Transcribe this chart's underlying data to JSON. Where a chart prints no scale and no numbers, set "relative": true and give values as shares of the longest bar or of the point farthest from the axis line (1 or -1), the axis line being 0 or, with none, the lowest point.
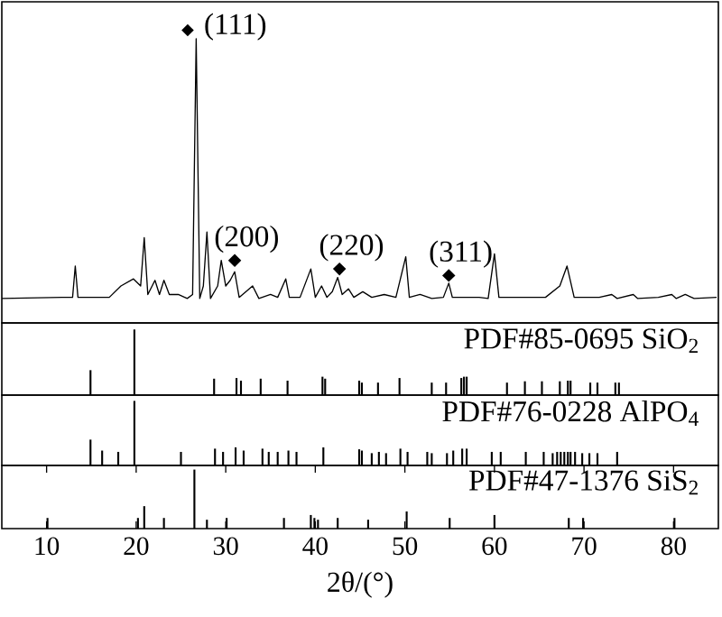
{
  "chart_data": [
    {
      "type": "line",
      "relative": true,
      "xlim": [
        5,
        85
      ],
      "tick_labels": false,
      "color": "#000000",
      "x": [
        5.0,
        11.7,
        12.9,
        13.2,
        13.5,
        17.0,
        18.3,
        19.7,
        20.5,
        20.9,
        21.3,
        22.1,
        22.6,
        23.1,
        23.7,
        24.7,
        25.7,
        26.3,
        26.7,
        27.1,
        27.5,
        27.9,
        28.3,
        29.1,
        29.5,
        30.0,
        30.5,
        31.0,
        31.5,
        33.0,
        33.7,
        35.0,
        35.8,
        36.7,
        37.1,
        38.3,
        39.5,
        40.0,
        40.7,
        41.3,
        41.9,
        42.5,
        43.0,
        43.7,
        44.3,
        45.3,
        46.3,
        47.7,
        49.0,
        50.1,
        50.5,
        51.7,
        53.0,
        54.3,
        54.9,
        55.3,
        58.3,
        59.3,
        60.0,
        60.5,
        61.7,
        63.0,
        65.7,
        67.3,
        68.1,
        68.9,
        71.7,
        73.1,
        73.7,
        75.5,
        76.0,
        78.3,
        79.8,
        80.3,
        81.3,
        82.3,
        84.8
      ],
      "values": [
        0.086,
        0.09,
        0.09,
        0.2,
        0.09,
        0.09,
        0.13,
        0.155,
        0.13,
        0.3,
        0.1,
        0.15,
        0.1,
        0.15,
        0.1,
        0.1,
        0.086,
        0.1,
        1.0,
        0.086,
        0.13,
        0.32,
        0.086,
        0.13,
        0.22,
        0.13,
        0.15,
        0.18,
        0.09,
        0.13,
        0.086,
        0.1,
        0.09,
        0.155,
        0.09,
        0.09,
        0.19,
        0.09,
        0.13,
        0.09,
        0.11,
        0.16,
        0.1,
        0.12,
        0.09,
        0.11,
        0.09,
        0.1,
        0.09,
        0.233,
        0.09,
        0.1,
        0.086,
        0.09,
        0.14,
        0.09,
        0.09,
        0.086,
        0.243,
        0.09,
        0.09,
        0.09,
        0.09,
        0.13,
        0.2,
        0.09,
        0.09,
        0.1,
        0.086,
        0.1,
        0.086,
        0.09,
        0.1,
        0.086,
        0.1,
        0.086,
        0.09
      ],
      "annotations": [
        {
          "text": "(111)",
          "x": 26.7,
          "y": 1.0
        },
        {
          "text": "(200)",
          "x": 31.0,
          "y": 0.22
        },
        {
          "text": "(220)",
          "x": 42.7,
          "y": 0.19
        },
        {
          "text": "(311)",
          "x": 54.9,
          "y": 0.167
        }
      ]
    },
    {
      "type": "bar",
      "relative": true,
      "xlim": [
        5,
        85
      ],
      "tick_labels": false,
      "color": "#000000",
      "title": "PDF#85-0695 SiO$_{2}$",
      "x": [
        14.9,
        19.8,
        28.7,
        31.2,
        31.7,
        33.9,
        36.9,
        40.8,
        41.1,
        44.9,
        45.2,
        47.0,
        49.4,
        53.0,
        54.6,
        56.3,
        56.6,
        56.9,
        61.4,
        63.4,
        65.3,
        67.3,
        68.2,
        68.5,
        70.7,
        71.5,
        73.5,
        73.9
      ],
      "values": [
        0.38,
        1,
        0.25,
        0.26,
        0.22,
        0.25,
        0.22,
        0.28,
        0.25,
        0.22,
        0.19,
        0.19,
        0.26,
        0.19,
        0.19,
        0.26,
        0.28,
        0.28,
        0.19,
        0.21,
        0.21,
        0.21,
        0.22,
        0.22,
        0.19,
        0.19,
        0.19,
        0.19
      ]
    },
    {
      "type": "bar",
      "relative": true,
      "xlim": [
        5,
        85
      ],
      "tick_labels": false,
      "color": "#000000",
      "title": "PDF#76-0228 AlPO$_{4}$",
      "x": [
        14.9,
        16.2,
        18.0,
        19.8,
        25.0,
        28.8,
        29.7,
        31.1,
        32.0,
        34.1,
        34.8,
        35.8,
        37.0,
        37.9,
        40.9,
        44.9,
        45.2,
        46.3,
        47.1,
        47.9,
        49.5,
        50.3,
        52.5,
        53.0,
        54.7,
        55.4,
        56.4,
        56.9,
        59.7,
        60.7,
        63.5,
        65.5,
        66.5,
        67.0,
        67.4,
        67.8,
        68.2,
        68.5,
        69.0,
        69.8,
        70.6,
        71.5,
        73.7
      ],
      "values": [
        0.4,
        0.23,
        0.21,
        1,
        0.21,
        0.26,
        0.21,
        0.28,
        0.23,
        0.26,
        0.21,
        0.21,
        0.23,
        0.21,
        0.28,
        0.25,
        0.23,
        0.19,
        0.21,
        0.19,
        0.26,
        0.21,
        0.21,
        0.19,
        0.19,
        0.23,
        0.26,
        0.26,
        0.21,
        0.21,
        0.21,
        0.21,
        0.19,
        0.21,
        0.21,
        0.21,
        0.21,
        0.21,
        0.21,
        0.19,
        0.19,
        0.19,
        0.21
      ]
    },
    {
      "type": "bar",
      "relative": true,
      "xlim": [
        5,
        85
      ],
      "tick_labels": "x",
      "color": "#000000",
      "title": "PDF#47-1376 SiS$_{2}$",
      "xlabel": "2θ/(°)",
      "xticks": [
        10,
        20,
        30,
        40,
        50,
        60,
        70,
        80
      ],
      "x": [
        10.1,
        20.2,
        20.9,
        23.1,
        26.5,
        27.9,
        30.1,
        36.5,
        39.5,
        39.9,
        40.3,
        42.5,
        45.9,
        50.2,
        55.0,
        60.0,
        68.3,
        69.9,
        80.1
      ],
      "values": [
        0.18,
        0.18,
        0.38,
        0.18,
        1,
        0.15,
        0.18,
        0.18,
        0.23,
        0.18,
        0.15,
        0.18,
        0.15,
        0.29,
        0.18,
        0.23,
        0.18,
        0.18,
        0.18
      ]
    }
  ]
}
